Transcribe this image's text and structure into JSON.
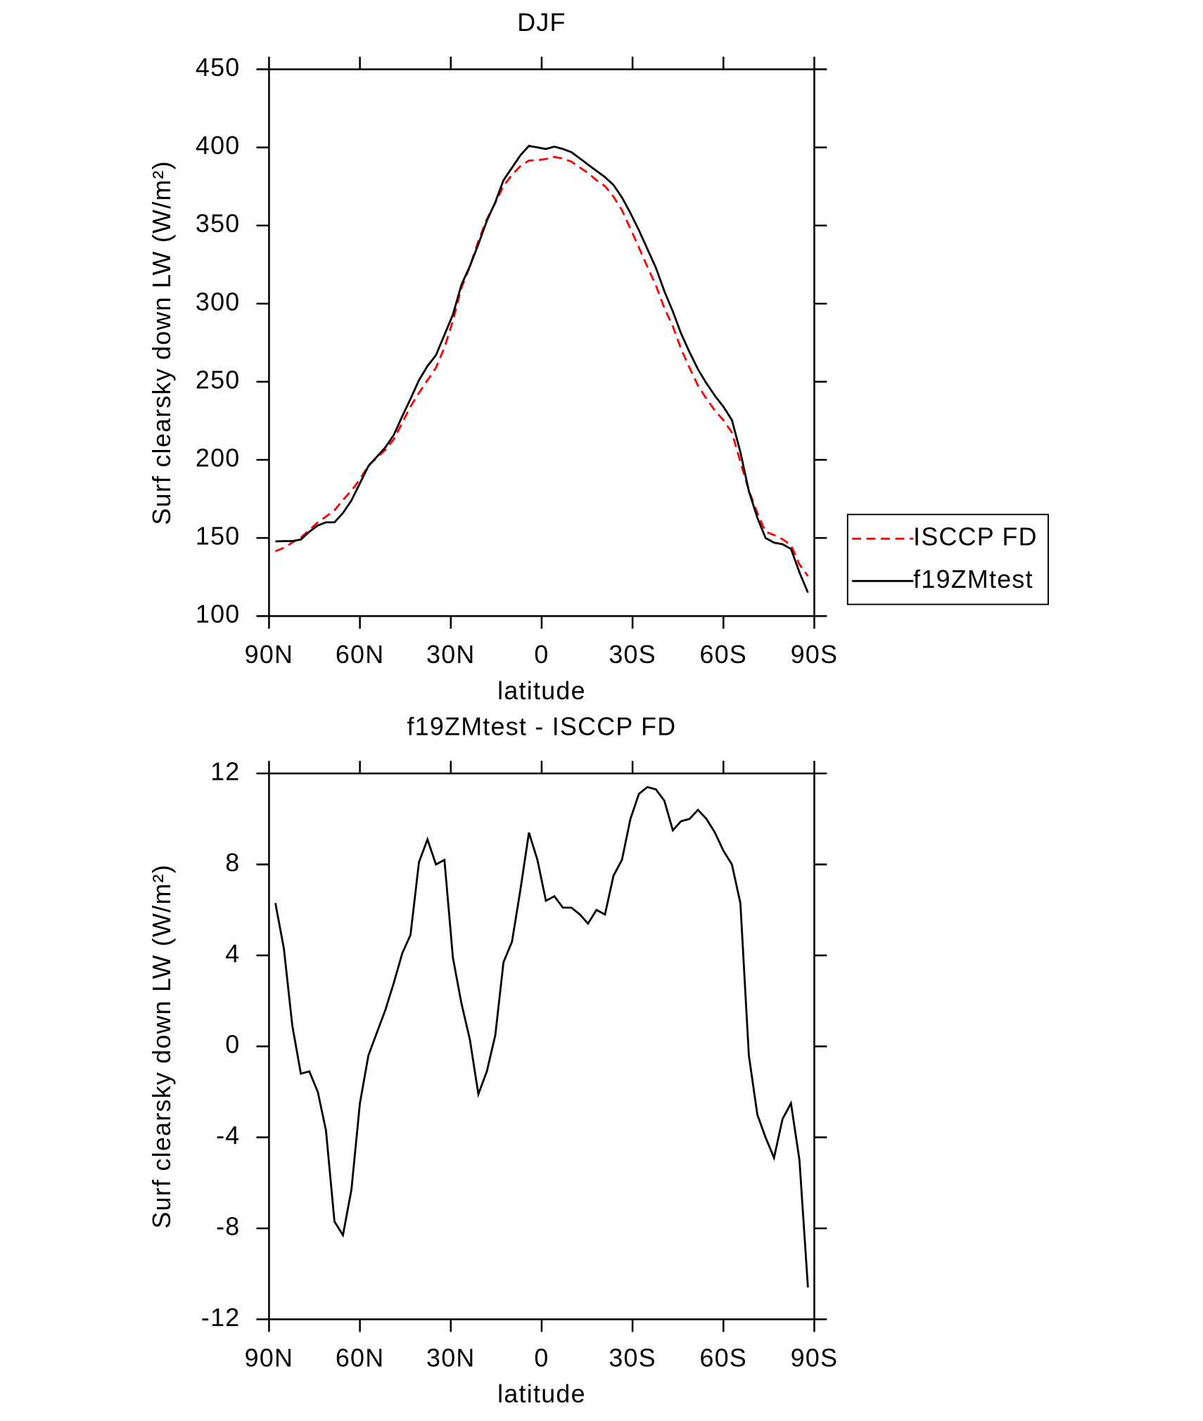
{
  "chart_data": [
    {
      "type": "line",
      "title": "DJF",
      "xlabel": "latitude",
      "ylabel": "Surf clearsky down LW (W/m²)",
      "xlim": [
        90,
        -90
      ],
      "xticks": [
        {
          "value": 90,
          "label": "90N"
        },
        {
          "value": 60,
          "label": "60N"
        },
        {
          "value": 30,
          "label": "30N"
        },
        0,
        {
          "value": -30,
          "label": "30S"
        },
        {
          "value": -60,
          "label": "60S"
        },
        {
          "value": -90,
          "label": "90S"
        }
      ],
      "ylim": [
        100,
        450
      ],
      "yticks": [
        100,
        150,
        200,
        250,
        300,
        350,
        400,
        450
      ],
      "x": [
        87.9,
        85.1,
        82.3,
        79.5,
        76.7,
        73.9,
        71.2,
        68.4,
        65.6,
        62.8,
        60.0,
        57.2,
        54.4,
        51.6,
        48.8,
        46.0,
        43.3,
        40.5,
        37.7,
        34.9,
        32.1,
        29.3,
        26.5,
        23.7,
        20.9,
        18.1,
        15.3,
        12.6,
        9.8,
        7.0,
        4.2,
        1.4,
        -1.4,
        -4.2,
        -7.0,
        -9.8,
        -12.6,
        -15.3,
        -18.1,
        -20.9,
        -23.7,
        -26.5,
        -29.3,
        -32.1,
        -34.9,
        -37.7,
        -40.5,
        -43.3,
        -46.0,
        -48.8,
        -51.6,
        -54.4,
        -57.2,
        -60.0,
        -62.8,
        -65.6,
        -68.4,
        -71.2,
        -73.9,
        -76.7,
        -79.5,
        -82.3,
        -85.1,
        -87.9
      ],
      "legend": "right",
      "series": [
        {
          "name": "ISCCP FD",
          "color": "#ff0000",
          "dashed": true,
          "values": [
            141.5,
            143.7,
            147.1,
            150.2,
            155.1,
            160,
            163.7,
            167.7,
            174.3,
            180.3,
            187.5,
            196.4,
            201.4,
            206.4,
            213.2,
            223.9,
            234.1,
            242.9,
            250.9,
            259,
            271.8,
            289.1,
            310.1,
            323.7,
            340.1,
            354.1,
            364.5,
            375.3,
            382.4,
            388.1,
            391.6,
            391.8,
            392.6,
            393.9,
            392.9,
            390.9,
            387.2,
            383.6,
            379,
            375.2,
            368.5,
            359.8,
            348,
            335.9,
            323.6,
            311.7,
            297.2,
            285.5,
            271.1,
            259,
            247.6,
            239,
            231.6,
            225.4,
            217.5,
            198.7,
            180.4,
            166,
            154,
            151.9,
            149.2,
            145.5,
            133,
            125.6
          ]
        },
        {
          "name": "f19ZMtest",
          "color": "#000000",
          "dashed": false,
          "values": [
            147.8,
            148,
            148,
            149,
            154,
            158,
            160,
            160,
            166,
            174,
            185,
            196,
            202,
            208,
            216,
            228,
            239,
            251,
            260,
            267,
            280,
            293,
            312,
            324,
            338,
            353,
            365,
            379,
            387,
            395,
            401,
            400,
            399,
            400.5,
            399,
            397,
            393,
            389,
            385,
            381,
            376,
            368,
            358,
            347,
            335,
            323,
            308,
            295,
            281,
            269,
            258,
            249,
            241,
            234,
            225.5,
            205,
            180,
            163,
            150,
            147,
            146,
            143,
            128,
            115
          ]
        }
      ]
    },
    {
      "type": "line",
      "title": "f19ZMtest - ISCCP FD",
      "xlabel": "latitude",
      "ylabel": "Surf clearsky down LW (W/m²)",
      "xlim": [
        90,
        -90
      ],
      "xticks": [
        {
          "value": 90,
          "label": "90N"
        },
        {
          "value": 60,
          "label": "60N"
        },
        {
          "value": 30,
          "label": "30N"
        },
        0,
        {
          "value": -30,
          "label": "30S"
        },
        {
          "value": -60,
          "label": "60S"
        },
        {
          "value": -90,
          "label": "90S"
        }
      ],
      "ylim": [
        -12,
        12
      ],
      "yticks": [
        -12,
        -8,
        -4,
        0,
        4,
        8,
        12
      ],
      "x": [
        87.9,
        85.1,
        82.3,
        79.5,
        76.7,
        73.9,
        71.2,
        68.4,
        65.6,
        62.8,
        60.0,
        57.2,
        54.4,
        51.6,
        48.8,
        46.0,
        43.3,
        40.5,
        37.7,
        34.9,
        32.1,
        29.3,
        26.5,
        23.7,
        20.9,
        18.1,
        15.3,
        12.6,
        9.8,
        7.0,
        4.2,
        1.4,
        -1.4,
        -4.2,
        -7.0,
        -9.8,
        -12.6,
        -15.3,
        -18.1,
        -20.9,
        -23.7,
        -26.5,
        -29.3,
        -32.1,
        -34.9,
        -37.7,
        -40.5,
        -43.3,
        -46.0,
        -48.8,
        -51.6,
        -54.4,
        -57.2,
        -60.0,
        -62.8,
        -65.6,
        -68.4,
        -71.2,
        -73.9,
        -76.7,
        -79.5,
        -82.3,
        -85.1,
        -87.9
      ],
      "series": [
        {
          "color": "#000000",
          "dashed": false,
          "values": [
            6.3,
            4.3,
            0.9,
            -1.2,
            -1.1,
            -2.0,
            -3.7,
            -7.7,
            -8.3,
            -6.3,
            -2.5,
            -0.4,
            0.6,
            1.6,
            2.8,
            4.1,
            4.9,
            8.1,
            9.1,
            8.0,
            8.2,
            3.9,
            1.9,
            0.3,
            -2.1,
            -1.1,
            0.5,
            3.7,
            4.6,
            6.9,
            9.4,
            8.2,
            6.4,
            6.6,
            6.1,
            6.1,
            5.8,
            5.4,
            6.0,
            5.8,
            7.5,
            8.2,
            10.0,
            11.1,
            11.4,
            11.3,
            10.8,
            9.5,
            9.9,
            10.0,
            10.4,
            10.0,
            9.4,
            8.6,
            8.0,
            6.3,
            -0.4,
            -3.0,
            -4.0,
            -4.9,
            -3.2,
            -2.5,
            -5.0,
            -10.6
          ]
        }
      ]
    }
  ]
}
